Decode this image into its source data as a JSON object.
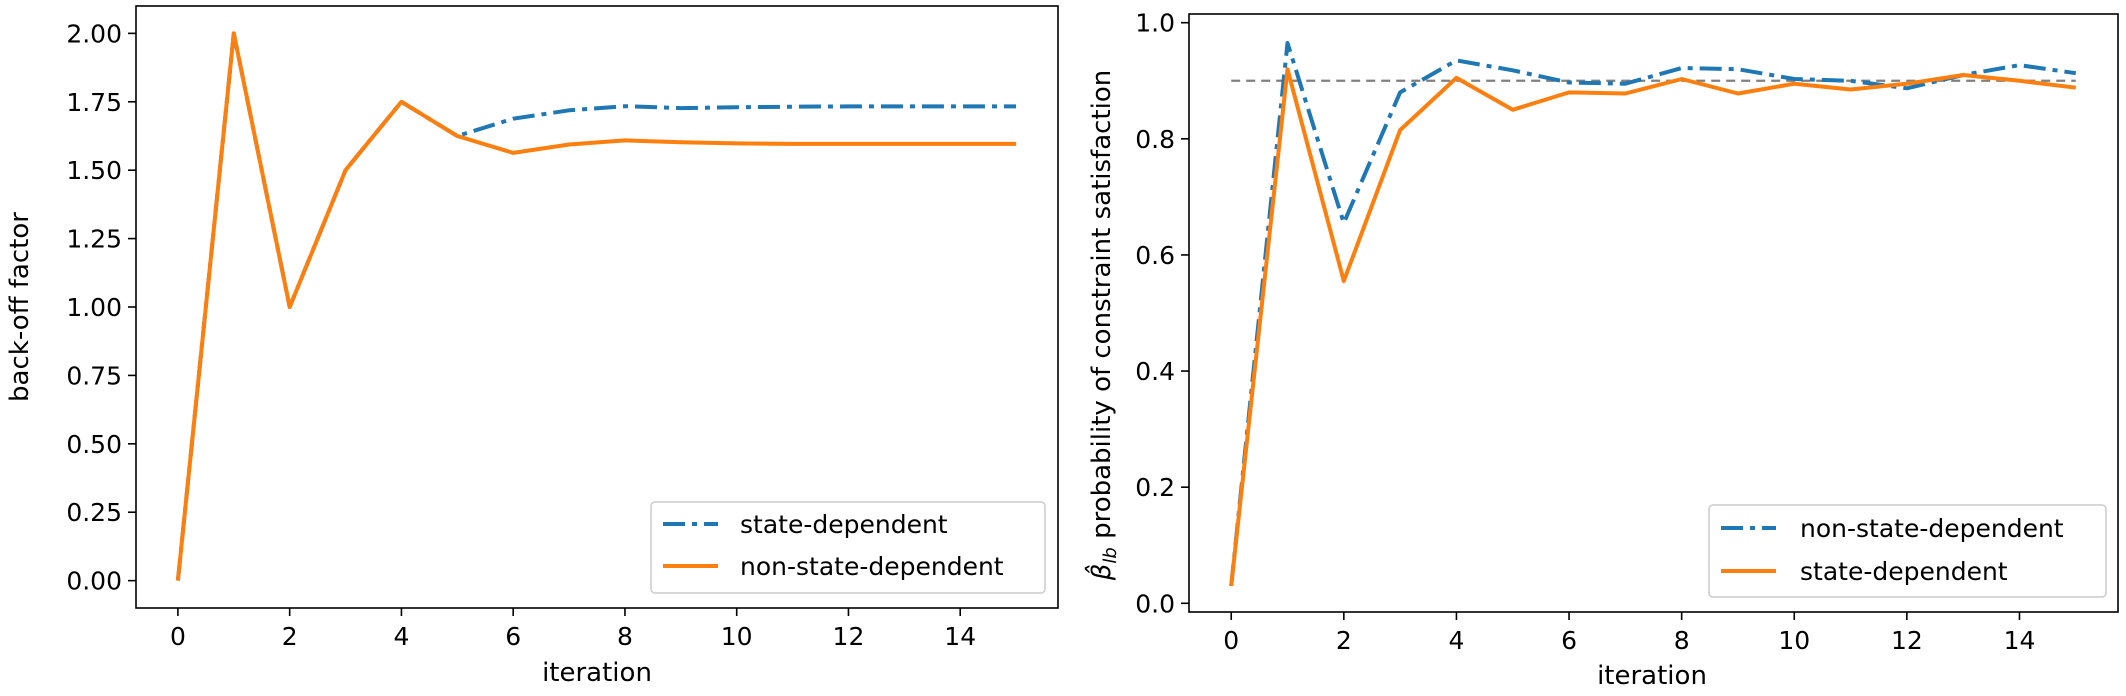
{
  "chart_data": [
    {
      "type": "line",
      "title": "",
      "xlabel": "iteration",
      "ylabel": "back-off factor",
      "xlim": [
        -0.75,
        15.75
      ],
      "ylim": [
        -0.1,
        2.1
      ],
      "xticks": [
        0,
        2,
        4,
        6,
        8,
        10,
        12,
        14
      ],
      "xtick_labels": [
        "0",
        "2",
        "4",
        "6",
        "8",
        "10",
        "12",
        "14"
      ],
      "yticks": [
        0.0,
        0.25,
        0.5,
        0.75,
        1.0,
        1.25,
        1.5,
        1.75,
        2.0
      ],
      "ytick_labels": [
        "0.00",
        "0.25",
        "0.50",
        "0.75",
        "1.00",
        "1.25",
        "1.50",
        "1.75",
        "2.00"
      ],
      "grid": false,
      "legend_position": "lower-right",
      "reference_line": null,
      "x": [
        0,
        1,
        2,
        3,
        4,
        5,
        6,
        7,
        8,
        9,
        10,
        11,
        12,
        13,
        14,
        15
      ],
      "series": [
        {
          "name": "state-dependent",
          "style": "dashdot",
          "color": "#1f77b4",
          "values": [
            0.0,
            2.0,
            1.0,
            1.5,
            1.75,
            1.625,
            1.688,
            1.719,
            1.734,
            1.727,
            1.73,
            1.732,
            1.733,
            1.733,
            1.733,
            1.733
          ]
        },
        {
          "name": "non-state-dependent",
          "style": "solid",
          "color": "#ff7f0e",
          "values": [
            0.0,
            2.0,
            1.0,
            1.5,
            1.75,
            1.625,
            1.563,
            1.594,
            1.609,
            1.602,
            1.598,
            1.596,
            1.596,
            1.596,
            1.596,
            1.596
          ]
        }
      ]
    },
    {
      "type": "line",
      "title": "",
      "xlabel": "iteration",
      "ylabel": "probability of constraint satisfaction",
      "ylabel_symbol": "β̂",
      "ylabel_subscript": "lb",
      "xlim": [
        -0.75,
        15.75
      ],
      "ylim": [
        -0.015,
        1.015
      ],
      "xticks": [
        0,
        2,
        4,
        6,
        8,
        10,
        12,
        14
      ],
      "xtick_labels": [
        "0",
        "2",
        "4",
        "6",
        "8",
        "10",
        "12",
        "14"
      ],
      "yticks": [
        0.0,
        0.2,
        0.4,
        0.6,
        0.8,
        1.0
      ],
      "ytick_labels": [
        "0.0",
        "0.2",
        "0.4",
        "0.6",
        "0.8",
        "1.0"
      ],
      "grid": false,
      "legend_position": "lower-right",
      "reference_line": {
        "y": 0.9,
        "style": "dashed",
        "color": "#808080"
      },
      "x": [
        0,
        1,
        2,
        3,
        4,
        5,
        6,
        7,
        8,
        9,
        10,
        11,
        12,
        13,
        14,
        15
      ],
      "series": [
        {
          "name": "non-state-dependent",
          "style": "dashdot",
          "color": "#1f77b4",
          "values": [
            0.03,
            0.965,
            0.655,
            0.88,
            0.935,
            0.918,
            0.897,
            0.895,
            0.922,
            0.92,
            0.903,
            0.9,
            0.887,
            0.91,
            0.927,
            0.913
          ]
        },
        {
          "name": "state-dependent",
          "style": "solid",
          "color": "#ff7f0e",
          "values": [
            0.03,
            0.92,
            0.555,
            0.815,
            0.905,
            0.85,
            0.88,
            0.878,
            0.903,
            0.878,
            0.895,
            0.885,
            0.895,
            0.91,
            0.9,
            0.888
          ]
        }
      ]
    }
  ]
}
